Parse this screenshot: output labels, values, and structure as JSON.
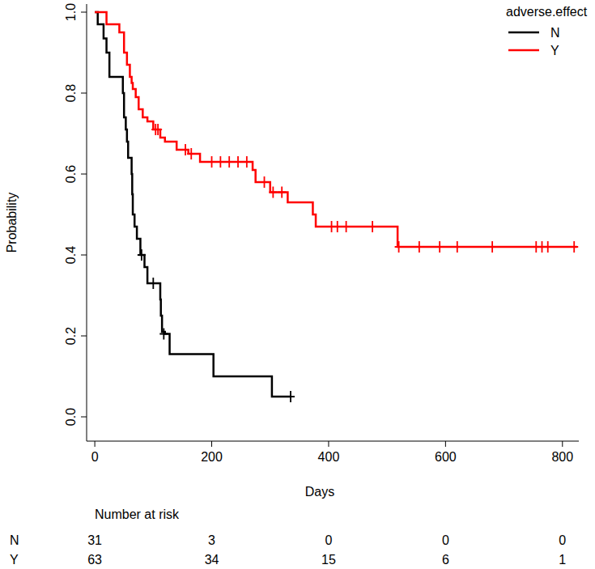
{
  "chart_data": {
    "type": "step",
    "x_label": "Days",
    "y_label": "Probability",
    "xlim": [
      -14,
      828
    ],
    "ylim": [
      -0.06,
      1.02
    ],
    "xticks": [
      0,
      200,
      400,
      600,
      800
    ],
    "yticks": [
      {
        "value": 0,
        "label": "0.0"
      },
      {
        "value": 0.2,
        "label": "0.2"
      },
      {
        "value": 0.4,
        "label": "0.4"
      },
      {
        "value": 0.6,
        "label": "0.6"
      },
      {
        "value": 0.8,
        "label": "0.8"
      },
      {
        "value": 1,
        "label": "1.0"
      }
    ],
    "grid": false,
    "legend": "top-right",
    "legend_title": "adverse.effect",
    "series": [
      {
        "name": "N",
        "color": "#000000",
        "x": [
          0,
          5,
          15,
          20,
          25,
          48,
          50,
          53,
          55,
          57,
          63,
          64,
          65,
          68,
          72,
          78,
          85,
          90,
          112,
          113,
          115,
          120,
          128,
          203,
          303
        ],
        "values": [
          1.0,
          0.97,
          0.935,
          0.9,
          0.84,
          0.8,
          0.74,
          0.71,
          0.68,
          0.64,
          0.6,
          0.55,
          0.5,
          0.47,
          0.44,
          0.4,
          0.37,
          0.33,
          0.29,
          0.25,
          0.21,
          0.205,
          0.155,
          0.1,
          0.05
        ],
        "end_x": 335,
        "censor_x": [
          80,
          100,
          118,
          335
        ],
        "censor_values": [
          0.4,
          0.33,
          0.205,
          0.05
        ]
      },
      {
        "name": "Y",
        "color": "#ff0000",
        "x": [
          0,
          20,
          42,
          50,
          55,
          60,
          63,
          65,
          70,
          75,
          82,
          90,
          100,
          112,
          120,
          140,
          160,
          180,
          270,
          275,
          300,
          330,
          373,
          378,
          518
        ],
        "values": [
          1.0,
          0.97,
          0.95,
          0.9,
          0.87,
          0.84,
          0.825,
          0.81,
          0.79,
          0.76,
          0.74,
          0.73,
          0.71,
          0.69,
          0.68,
          0.66,
          0.65,
          0.63,
          0.61,
          0.58,
          0.555,
          0.53,
          0.5,
          0.47,
          0.42
        ],
        "end_x": 825,
        "censor_x": [
          104,
          108,
          155,
          165,
          200,
          215,
          230,
          245,
          260,
          290,
          305,
          320,
          405,
          415,
          430,
          475,
          520,
          555,
          590,
          620,
          680,
          755,
          765,
          775,
          820
        ],
        "censor_values": [
          0.71,
          0.71,
          0.66,
          0.65,
          0.63,
          0.63,
          0.63,
          0.63,
          0.63,
          0.58,
          0.555,
          0.555,
          0.47,
          0.47,
          0.47,
          0.47,
          0.42,
          0.42,
          0.42,
          0.42,
          0.42,
          0.42,
          0.42,
          0.42,
          0.42
        ]
      }
    ],
    "risk_table": {
      "title": "Number at risk",
      "rows": [
        {
          "name": "N",
          "values": [
            31,
            3,
            0,
            0,
            0
          ]
        },
        {
          "name": "Y",
          "values": [
            63,
            34,
            15,
            6,
            1
          ]
        }
      ]
    }
  }
}
